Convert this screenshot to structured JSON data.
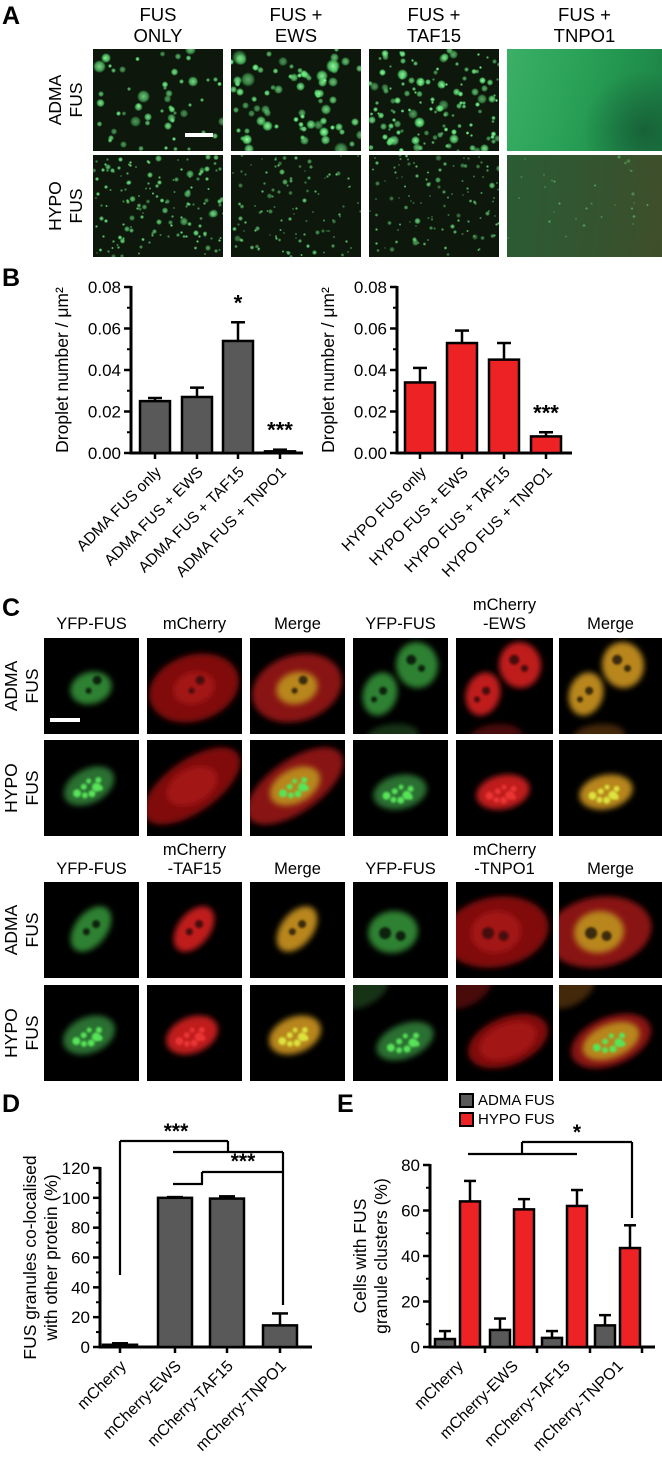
{
  "figure": {
    "panel_a": {
      "label": "A",
      "col_headers": [
        {
          "l1": "FUS",
          "l2": "ONLY"
        },
        {
          "l1": "FUS +",
          "l2": "EWS"
        },
        {
          "l1": "FUS +",
          "l2": "TAF15"
        },
        {
          "l1": "FUS +",
          "l2": "TNPO1"
        }
      ],
      "row_labels": [
        {
          "l1": "ADMA",
          "l2": "FUS"
        },
        {
          "l1": "HYPO",
          "l2": "FUS"
        }
      ]
    },
    "panel_b": {
      "label": "B"
    },
    "panel_c": {
      "label": "C",
      "block1_headers": [
        {
          "top": "",
          "bottom": "YFP-FUS"
        },
        {
          "top": "",
          "bottom": "mCherry"
        },
        {
          "top": "",
          "bottom": "Merge"
        },
        {
          "top": "",
          "bottom": "YFP-FUS"
        },
        {
          "top": "mCherry",
          "bottom": "-EWS"
        },
        {
          "top": "",
          "bottom": "Merge"
        }
      ],
      "block2_headers": [
        {
          "top": "",
          "bottom": "YFP-FUS"
        },
        {
          "top": "mCherry",
          "bottom": "-TAF15"
        },
        {
          "top": "",
          "bottom": "Merge"
        },
        {
          "top": "",
          "bottom": "YFP-FUS"
        },
        {
          "top": "mCherry",
          "bottom": "-TNPO1"
        },
        {
          "top": "",
          "bottom": "Merge"
        }
      ],
      "row_labels": [
        {
          "l1": "ADMA",
          "l2": "FUS"
        },
        {
          "l1": "HYPO",
          "l2": "FUS"
        }
      ]
    },
    "panel_d": {
      "label": "D"
    },
    "panel_e": {
      "label": "E"
    }
  },
  "chart_data": [
    {
      "id": "b_adma",
      "type": "bar",
      "ylabel_lines": [
        "Droplet number / μm²"
      ],
      "ylim": [
        0,
        0.08
      ],
      "ytick_step": 0.02,
      "tick_decimals": 2,
      "bar_color": "#595959",
      "categories": [
        "ADMA FUS only",
        "ADMA FUS + EWS",
        "ADMA FUS + TAF15",
        "ADMA FUS + TNPO1"
      ],
      "values": [
        0.025,
        0.027,
        0.054,
        0.0008
      ],
      "errors": [
        0.0015,
        0.0045,
        0.009,
        0.0008
      ],
      "sig_labels": [
        {
          "bar": 2,
          "text": "*"
        },
        {
          "bar": 3,
          "text": "***"
        }
      ]
    },
    {
      "id": "b_hypo",
      "type": "bar",
      "ylabel_lines": [
        "Droplet number / μm²"
      ],
      "ylim": [
        0,
        0.08
      ],
      "ytick_step": 0.02,
      "tick_decimals": 2,
      "bar_color": "#ed2224",
      "categories": [
        "HYPO FUS only",
        "HYPO FUS + EWS",
        "HYPO FUS + TAF15",
        "HYPO FUS + TNPO1"
      ],
      "values": [
        0.034,
        0.053,
        0.045,
        0.008
      ],
      "errors": [
        0.007,
        0.006,
        0.008,
        0.002
      ],
      "sig_labels": [
        {
          "bar": 3,
          "text": "***"
        }
      ]
    },
    {
      "id": "d",
      "type": "bar",
      "ylabel_lines": [
        "FUS granules co-localised",
        "with other protein (%)"
      ],
      "ylim": [
        0,
        120
      ],
      "ytick_step": 20,
      "tick_decimals": 0,
      "bar_color": "#595959",
      "categories": [
        "mCherry",
        "mCherry-EWS",
        "mCherry-TAF15",
        "mCherry-TNPO1"
      ],
      "values": [
        1.5,
        100,
        99.5,
        14.5
      ],
      "errors": [
        1,
        0.5,
        1.5,
        8
      ],
      "brackets": [
        {
          "text": "***"
        },
        {
          "text": "***"
        }
      ]
    },
    {
      "id": "e",
      "type": "bar",
      "ylabel_lines": [
        "Cells with FUS",
        "granule clusters (%)"
      ],
      "ylim": [
        0,
        80
      ],
      "ytick_step": 20,
      "tick_decimals": 0,
      "categories": [
        "mCherry",
        "mCherry-EWS",
        "mCherry-TAF15",
        "mCherry-TNPO1"
      ],
      "series": [
        {
          "name": "ADMA FUS",
          "color": "#595959",
          "values": [
            3.5,
            7.5,
            4,
            9.5
          ],
          "errors": [
            3.5,
            5,
            3,
            4.5
          ]
        },
        {
          "name": "HYPO FUS",
          "color": "#ed2224",
          "values": [
            64,
            60.5,
            62,
            43.5
          ],
          "errors": [
            9,
            4.5,
            7,
            10
          ]
        }
      ],
      "legend": [
        {
          "label": "ADMA FUS",
          "color": "#595959"
        },
        {
          "label": "HYPO FUS",
          "color": "#ed2224"
        }
      ],
      "brackets": [
        {
          "text": "*"
        }
      ]
    }
  ]
}
